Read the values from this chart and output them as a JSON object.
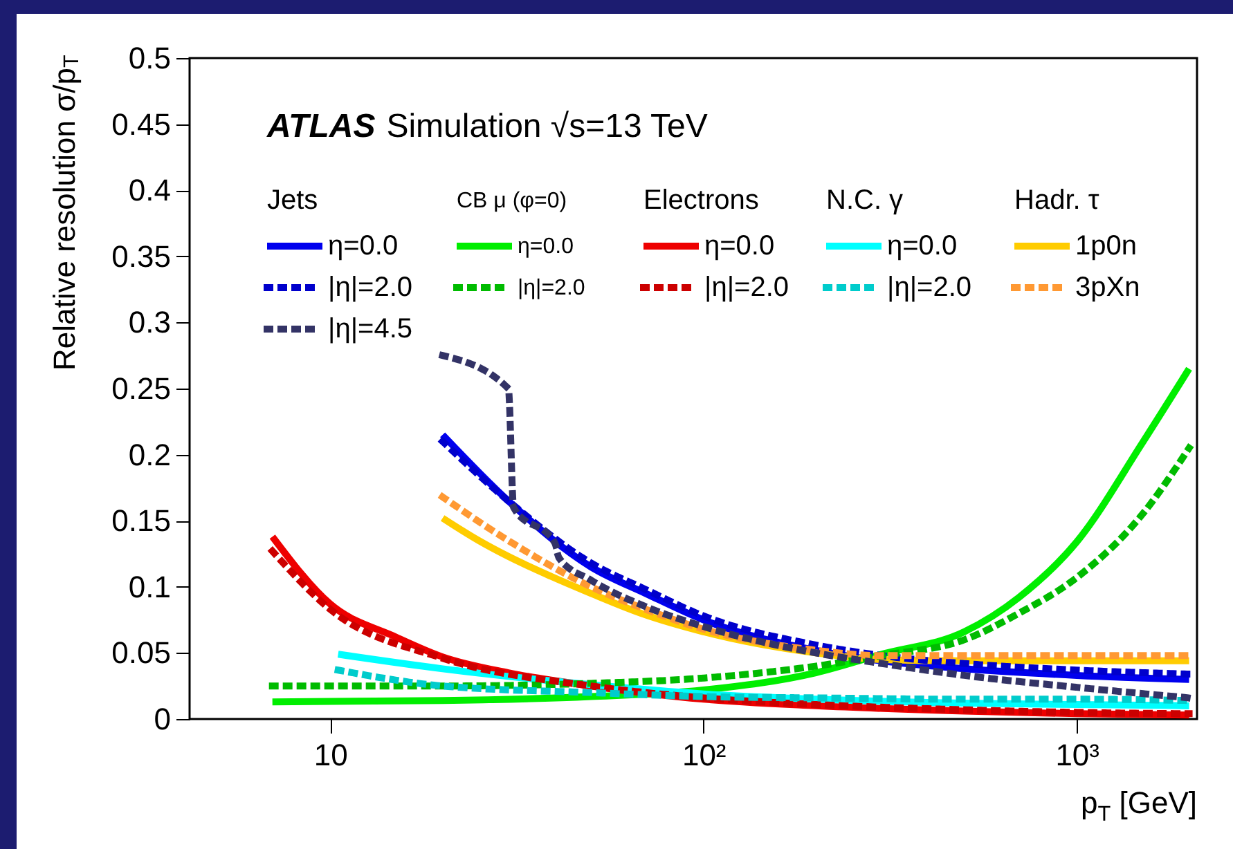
{
  "chart_data": {
    "type": "line",
    "xlabel": "p$_{T}$ [GeV]",
    "ylabel": "Relative resolution σ/p$_{T}$",
    "annotations": [
      "ATLAS Simulation √s=13 TeV",
      "Jets",
      "CB μ (φ=0)",
      "Electrons",
      "N.C. γ",
      "Hadr. τ"
    ],
    "log": "x",
    "xlim": [
      4.2,
      2100
    ],
    "xticks": [
      10,
      {
        "value": 100,
        "label": "10²"
      },
      {
        "value": 1000,
        "label": "10³"
      }
    ],
    "ylim": [
      0,
      0.5
    ],
    "yticks": [
      0,
      0.05,
      0.1,
      0.15,
      0.2,
      0.25,
      0.3,
      0.35,
      0.4,
      0.45,
      0.5
    ],
    "legend": "top",
    "series": [
      {
        "name": "η=0.0",
        "color": "#0000ee",
        "line_style": "solid",
        "x": [
          20,
          30,
          50,
          70,
          100,
          200,
          300,
          500,
          1000,
          2000
        ],
        "values": [
          0.215,
          0.165,
          0.115,
          0.095,
          0.075,
          0.052,
          0.044,
          0.038,
          0.033,
          0.03
        ]
      },
      {
        "name": "η=0.0",
        "color": "#00ee00",
        "line_style": "solid",
        "x": [
          7,
          20,
          50,
          100,
          200,
          300,
          500,
          700,
          1000,
          1500,
          2000
        ],
        "values": [
          0.013,
          0.014,
          0.017,
          0.022,
          0.035,
          0.049,
          0.066,
          0.092,
          0.134,
          0.209,
          0.265
        ]
      },
      {
        "name": "η=0.0",
        "color": "#ee0000",
        "line_style": "solid",
        "x": [
          7,
          10,
          15,
          20,
          30,
          50,
          100,
          200,
          500,
          1000,
          2000
        ],
        "values": [
          0.138,
          0.087,
          0.062,
          0.047,
          0.035,
          0.025,
          0.015,
          0.01,
          0.006,
          0.004,
          0.003
        ]
      },
      {
        "name": "η=0.0",
        "color": "#00ffff",
        "line_style": "solid",
        "x": [
          10.5,
          20,
          50,
          100,
          200,
          500,
          1000,
          2000
        ],
        "values": [
          0.049,
          0.038,
          0.026,
          0.019,
          0.015,
          0.012,
          0.011,
          0.01
        ]
      },
      {
        "name": "1p0n",
        "color": "#ffcc00",
        "line_style": "solid",
        "x": [
          20,
          25,
          30,
          39,
          50,
          68,
          100,
          200,
          300,
          500,
          1000,
          2000
        ],
        "values": [
          0.152,
          0.135,
          0.123,
          0.108,
          0.095,
          0.08,
          0.066,
          0.05,
          0.045,
          0.044,
          0.044,
          0.044
        ]
      },
      {
        "name": "|η|=2.0",
        "color": "#0000cc",
        "line_style": "dashed",
        "x": [
          20,
          30,
          50,
          70,
          100,
          200,
          300,
          500,
          1000,
          2000
        ],
        "values": [
          0.21,
          0.165,
          0.118,
          0.098,
          0.078,
          0.056,
          0.048,
          0.042,
          0.037,
          0.034
        ]
      },
      {
        "name": "|η|=2.0",
        "color": "#00bb00",
        "line_style": "dashed",
        "x": [
          7,
          20,
          50,
          100,
          200,
          300,
          500,
          700,
          1000,
          1500,
          2000
        ],
        "values": [
          0.025,
          0.025,
          0.027,
          0.031,
          0.04,
          0.048,
          0.06,
          0.08,
          0.107,
          0.155,
          0.205
        ]
      },
      {
        "name": "|η|=2.0",
        "color": "#cc0000",
        "line_style": "dashed",
        "x": [
          7,
          10,
          20,
          50,
          100,
          200,
          500,
          1000,
          2000
        ],
        "values": [
          0.127,
          0.083,
          0.046,
          0.025,
          0.016,
          0.011,
          0.007,
          0.005,
          0.004
        ]
      },
      {
        "name": "|η|=2.0",
        "color": "#00cccc",
        "line_style": "dashed",
        "x": [
          10.5,
          20,
          50,
          100,
          200,
          500,
          1000,
          2000
        ],
        "values": [
          0.037,
          0.025,
          0.02,
          0.017,
          0.016,
          0.015,
          0.015,
          0.014
        ]
      },
      {
        "name": "3pXn",
        "color": "#ff9933",
        "line_style": "dashed",
        "x": [
          20,
          30,
          50,
          70,
          100,
          200,
          300,
          500,
          1000,
          2000
        ],
        "values": [
          0.168,
          0.135,
          0.1,
          0.083,
          0.068,
          0.052,
          0.048,
          0.048,
          0.048,
          0.048
        ]
      },
      {
        "name": "|η|=4.5",
        "color": "#333366",
        "line_style": "dashed",
        "x": [
          20,
          30,
          31,
          40,
          41,
          50,
          70,
          100,
          200,
          300,
          500,
          1000,
          2000
        ],
        "values": [
          0.275,
          0.25,
          0.16,
          0.133,
          0.122,
          0.105,
          0.085,
          0.07,
          0.05,
          0.042,
          0.033,
          0.024,
          0.016
        ]
      }
    ]
  }
}
